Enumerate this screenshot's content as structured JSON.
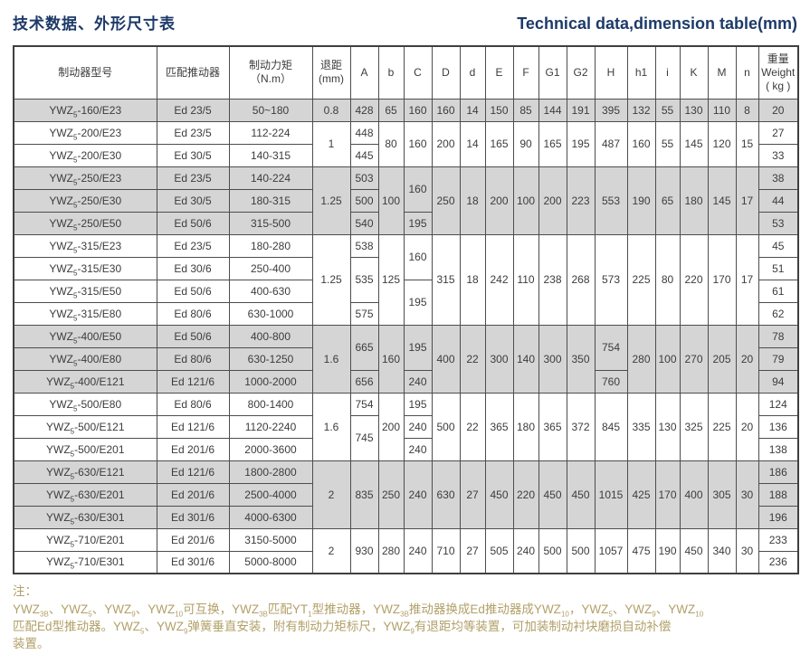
{
  "title_zh": "技术数据、外形尺寸表",
  "title_en": "Technical data,dimension table(mm)",
  "colors": {
    "accent_navy": "#1d3a68",
    "note_gold": "#b2a068",
    "row_shade": "#d5d5d5",
    "border": "#4d4d4d"
  },
  "table": {
    "header": [
      {
        "lines": [
          "制动器型号"
        ]
      },
      {
        "lines": [
          "匹配推动器"
        ]
      },
      {
        "lines": [
          "制动力矩",
          "（N.m）"
        ]
      },
      {
        "lines": [
          "退距",
          "(mm)"
        ]
      },
      {
        "lines": [
          "A"
        ]
      },
      {
        "lines": [
          "b"
        ]
      },
      {
        "lines": [
          "C"
        ]
      },
      {
        "lines": [
          "D"
        ]
      },
      {
        "lines": [
          "d"
        ]
      },
      {
        "lines": [
          "E"
        ]
      },
      {
        "lines": [
          "F"
        ]
      },
      {
        "lines": [
          "G1"
        ]
      },
      {
        "lines": [
          "G2"
        ]
      },
      {
        "lines": [
          "H"
        ]
      },
      {
        "lines": [
          "h1"
        ]
      },
      {
        "lines": [
          "i"
        ]
      },
      {
        "lines": [
          "K"
        ]
      },
      {
        "lines": [
          "M"
        ]
      },
      {
        "lines": [
          "n"
        ]
      },
      {
        "lines": [
          "重量",
          "Weight",
          "( kg )"
        ]
      }
    ],
    "rows": [
      {
        "shade": true,
        "cells": [
          {
            "m": [
              "YWZ",
              "5",
              "-160/E23"
            ]
          },
          "Ed 23/5",
          "50~180",
          "0.8",
          "428",
          "65",
          "160",
          "160",
          "14",
          "150",
          "85",
          "144",
          "191",
          "395",
          "132",
          "55",
          "130",
          "110",
          "8",
          "20"
        ]
      },
      {
        "shade": false,
        "cells": [
          {
            "m": [
              "YWZ",
              "5",
              "-200/E23"
            ]
          },
          "Ed 23/5",
          "112-224",
          {
            "t": "1",
            "rs": 2
          },
          "448",
          {
            "t": "80",
            "rs": 2
          },
          {
            "t": "160",
            "rs": 2
          },
          {
            "t": "200",
            "rs": 2
          },
          {
            "t": "14",
            "rs": 2
          },
          {
            "t": "165",
            "rs": 2
          },
          {
            "t": "90",
            "rs": 2
          },
          {
            "t": "165",
            "rs": 2
          },
          {
            "t": "195",
            "rs": 2
          },
          {
            "t": "487",
            "rs": 2
          },
          {
            "t": "160",
            "rs": 2
          },
          {
            "t": "55",
            "rs": 2
          },
          {
            "t": "145",
            "rs": 2
          },
          {
            "t": "120",
            "rs": 2
          },
          {
            "t": "15",
            "rs": 2
          },
          "27"
        ]
      },
      {
        "shade": false,
        "cells": [
          {
            "m": [
              "YWZ",
              "5",
              "-200/E30"
            ]
          },
          "Ed 30/5",
          "140-315",
          "445",
          "33"
        ]
      },
      {
        "shade": true,
        "cells": [
          {
            "m": [
              "YWZ",
              "5",
              "-250/E23"
            ]
          },
          "Ed 23/5",
          "140-224",
          {
            "t": "1.25",
            "rs": 3
          },
          "503",
          {
            "t": "100",
            "rs": 3
          },
          {
            "t": "160",
            "rs": 2
          },
          {
            "t": "250",
            "rs": 3
          },
          {
            "t": "18",
            "rs": 3
          },
          {
            "t": "200",
            "rs": 3
          },
          {
            "t": "100",
            "rs": 3
          },
          {
            "t": "200",
            "rs": 3
          },
          {
            "t": "223",
            "rs": 3
          },
          {
            "t": "553",
            "rs": 3
          },
          {
            "t": "190",
            "rs": 3
          },
          {
            "t": "65",
            "rs": 3
          },
          {
            "t": "180",
            "rs": 3
          },
          {
            "t": "145",
            "rs": 3
          },
          {
            "t": "17",
            "rs": 3
          },
          "38"
        ]
      },
      {
        "shade": true,
        "cells": [
          {
            "m": [
              "YWZ",
              "5",
              "-250/E30"
            ]
          },
          "Ed 30/5",
          "180-315",
          "500",
          "44"
        ]
      },
      {
        "shade": true,
        "cells": [
          {
            "m": [
              "YWZ",
              "5",
              "-250/E50"
            ]
          },
          "Ed 50/6",
          "315-500",
          "540",
          "195",
          "53"
        ]
      },
      {
        "shade": false,
        "cells": [
          {
            "m": [
              "YWZ",
              "5",
              "-315/E23"
            ]
          },
          "Ed 23/5",
          "180-280",
          {
            "t": "1.25",
            "rs": 4
          },
          "538",
          {
            "t": "125",
            "rs": 4
          },
          {
            "t": "160",
            "rs": 2
          },
          {
            "t": "315",
            "rs": 4
          },
          {
            "t": "18",
            "rs": 4
          },
          {
            "t": "242",
            "rs": 4
          },
          {
            "t": "110",
            "rs": 4
          },
          {
            "t": "238",
            "rs": 4
          },
          {
            "t": "268",
            "rs": 4
          },
          {
            "t": "573",
            "rs": 4
          },
          {
            "t": "225",
            "rs": 4
          },
          {
            "t": "80",
            "rs": 4
          },
          {
            "t": "220",
            "rs": 4
          },
          {
            "t": "170",
            "rs": 4
          },
          {
            "t": "17",
            "rs": 4
          },
          "45"
        ]
      },
      {
        "shade": false,
        "cells": [
          {
            "m": [
              "YWZ",
              "5",
              "-315/E30"
            ]
          },
          "Ed 30/6",
          "250-400",
          {
            "t": "535",
            "rs": 2
          },
          "51"
        ]
      },
      {
        "shade": false,
        "cells": [
          {
            "m": [
              "YWZ",
              "5",
              "-315/E50"
            ]
          },
          "Ed 50/6",
          "400-630",
          {
            "t": "195",
            "rs": 2
          },
          "61"
        ]
      },
      {
        "shade": false,
        "cells": [
          {
            "m": [
              "YWZ",
              "5",
              "-315/E80"
            ]
          },
          "Ed 80/6",
          "630-1000",
          "575",
          "62"
        ]
      },
      {
        "shade": true,
        "cells": [
          {
            "m": [
              "YWZ",
              "5",
              "-400/E50"
            ]
          },
          "Ed 50/6",
          "400-800",
          {
            "t": "1.6",
            "rs": 3
          },
          {
            "t": "665",
            "rs": 2
          },
          {
            "t": "160",
            "rs": 3
          },
          {
            "t": "195",
            "rs": 2
          },
          {
            "t": "400",
            "rs": 3
          },
          {
            "t": "22",
            "rs": 3
          },
          {
            "t": "300",
            "rs": 3
          },
          {
            "t": "140",
            "rs": 3
          },
          {
            "t": "300",
            "rs": 3
          },
          {
            "t": "350",
            "rs": 3
          },
          {
            "t": "754",
            "rs": 2
          },
          {
            "t": "280",
            "rs": 3
          },
          {
            "t": "100",
            "rs": 3
          },
          {
            "t": "270",
            "rs": 3
          },
          {
            "t": "205",
            "rs": 3
          },
          {
            "t": "20",
            "rs": 3
          },
          "78"
        ]
      },
      {
        "shade": true,
        "cells": [
          {
            "m": [
              "YWZ",
              "5",
              "-400/E80"
            ]
          },
          "Ed 80/6",
          "630-1250",
          "79"
        ]
      },
      {
        "shade": true,
        "cells": [
          {
            "m": [
              "YWZ",
              "5",
              "-400/E121"
            ]
          },
          "Ed 121/6",
          "1000-2000",
          "656",
          "240",
          "760",
          "94"
        ]
      },
      {
        "shade": false,
        "cells": [
          {
            "m": [
              "YWZ",
              "5",
              "-500/E80"
            ]
          },
          "Ed 80/6",
          "800-1400",
          {
            "t": "1.6",
            "rs": 3
          },
          "754",
          {
            "t": "200",
            "rs": 3
          },
          "195",
          {
            "t": "500",
            "rs": 3
          },
          {
            "t": "22",
            "rs": 3
          },
          {
            "t": "365",
            "rs": 3
          },
          {
            "t": "180",
            "rs": 3
          },
          {
            "t": "365",
            "rs": 3
          },
          {
            "t": "372",
            "rs": 3
          },
          {
            "t": "845",
            "rs": 3
          },
          {
            "t": "335",
            "rs": 3
          },
          {
            "t": "130",
            "rs": 3
          },
          {
            "t": "325",
            "rs": 3
          },
          {
            "t": "225",
            "rs": 3
          },
          {
            "t": "20",
            "rs": 3
          },
          "124"
        ]
      },
      {
        "shade": false,
        "cells": [
          {
            "m": [
              "YWZ",
              "5",
              "-500/E121"
            ]
          },
          "Ed 121/6",
          "1120-2240",
          {
            "t": "745",
            "rs": 2
          },
          "240",
          "136"
        ]
      },
      {
        "shade": false,
        "cells": [
          {
            "m": [
              "YWZ",
              "5",
              "-500/E201"
            ]
          },
          "Ed 201/6",
          "2000-3600",
          "240",
          "138"
        ]
      },
      {
        "shade": true,
        "cells": [
          {
            "m": [
              "YWZ",
              "5",
              "-630/E121"
            ]
          },
          "Ed 121/6",
          "1800-2800",
          {
            "t": "2",
            "rs": 3
          },
          {
            "t": "835",
            "rs": 3
          },
          {
            "t": "250",
            "rs": 3
          },
          {
            "t": "240",
            "rs": 3
          },
          {
            "t": "630",
            "rs": 3
          },
          {
            "t": "27",
            "rs": 3
          },
          {
            "t": "450",
            "rs": 3
          },
          {
            "t": "220",
            "rs": 3
          },
          {
            "t": "450",
            "rs": 3
          },
          {
            "t": "450",
            "rs": 3
          },
          {
            "t": "1015",
            "rs": 3
          },
          {
            "t": "425",
            "rs": 3
          },
          {
            "t": "170",
            "rs": 3
          },
          {
            "t": "400",
            "rs": 3
          },
          {
            "t": "305",
            "rs": 3
          },
          {
            "t": "30",
            "rs": 3
          },
          "186"
        ]
      },
      {
        "shade": true,
        "cells": [
          {
            "m": [
              "YWZ",
              "5",
              "-630/E201"
            ]
          },
          "Ed 201/6",
          "2500-4000",
          "188"
        ]
      },
      {
        "shade": true,
        "cells": [
          {
            "m": [
              "YWZ",
              "5",
              "-630/E301"
            ]
          },
          "Ed 301/6",
          "4000-6300",
          "196"
        ]
      },
      {
        "shade": false,
        "cells": [
          {
            "m": [
              "YWZ",
              "5",
              "-710/E201"
            ]
          },
          "Ed 201/6",
          "3150-5000",
          {
            "t": "2",
            "rs": 2
          },
          {
            "t": "930",
            "rs": 2
          },
          {
            "t": "280",
            "rs": 2
          },
          {
            "t": "240",
            "rs": 2
          },
          {
            "t": "710",
            "rs": 2
          },
          {
            "t": "27",
            "rs": 2
          },
          {
            "t": "505",
            "rs": 2
          },
          {
            "t": "240",
            "rs": 2
          },
          {
            "t": "500",
            "rs": 2
          },
          {
            "t": "500",
            "rs": 2
          },
          {
            "t": "1057",
            "rs": 2
          },
          {
            "t": "475",
            "rs": 2
          },
          {
            "t": "190",
            "rs": 2
          },
          {
            "t": "450",
            "rs": 2
          },
          {
            "t": "340",
            "rs": 2
          },
          {
            "t": "30",
            "rs": 2
          },
          "233"
        ]
      },
      {
        "shade": false,
        "cells": [
          {
            "m": [
              "YWZ",
              "5",
              "-710/E301"
            ]
          },
          "Ed 301/6",
          "5000-8000",
          "236"
        ]
      }
    ]
  },
  "note": {
    "label": "注：",
    "lines": [
      "YWZ_{3B}、YWZ_{5}、YWZ_{9}、YWZ_{10}可互换，YWZ_{3B}匹配YT_{1}型推动器，YWZ_{3B}推动器换成Ed推动器成YWZ_{10}，YWZ_{5}、YWZ_{9}、YWZ_{10}",
      "匹配Ed型推动器。YWZ_{5}、YWZ_{9}弹簧垂直安装，附有制动力矩标尺，YWZ_{9}有退距均等装置，可加装制动衬块磨损自动补偿",
      "装置。"
    ]
  }
}
